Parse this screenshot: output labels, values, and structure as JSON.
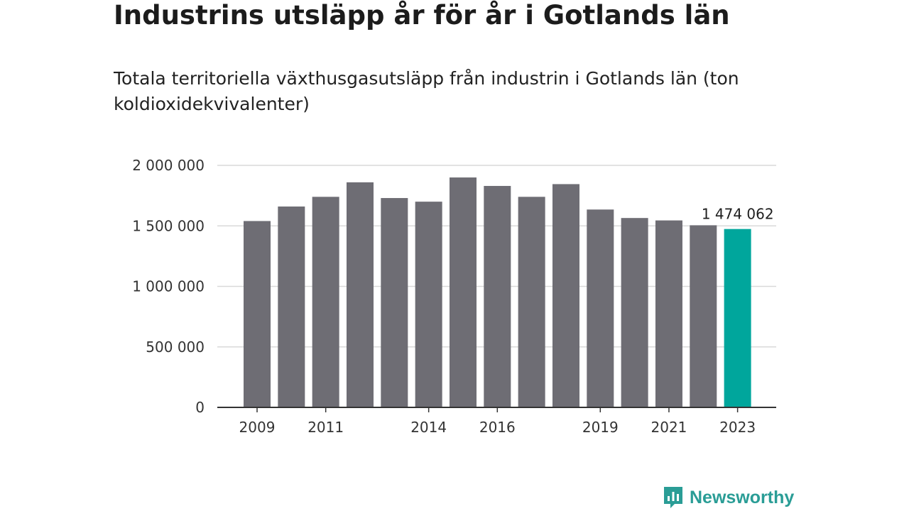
{
  "title": "Industrins utsläpp år för år i Gotlands län",
  "subtitle": "Totala territoriella växthusgasutsläpp från industrin i Gotlands län (ton koldioxidekvivalenter)",
  "brand": {
    "name": "Newsworthy",
    "color": "#2a9d96"
  },
  "colors": {
    "bar": "#6e6d74",
    "highlight": "#00a69c",
    "grid": "#d9d9d9",
    "axis": "#333333"
  },
  "chart_data": {
    "type": "bar",
    "categories": [
      "2009",
      "2010",
      "2011",
      "2012",
      "2013",
      "2014",
      "2015",
      "2016",
      "2017",
      "2018",
      "2019",
      "2020",
      "2021",
      "2022",
      "2023"
    ],
    "values": [
      1540000,
      1660000,
      1740000,
      1860000,
      1730000,
      1700000,
      1900000,
      1830000,
      1740000,
      1845000,
      1635000,
      1565000,
      1545000,
      1505000,
      1474062
    ],
    "highlight_index": 14,
    "highlight_label": "1 474 062",
    "xtick_labels": [
      "2009",
      "",
      "2011",
      "",
      "",
      "2014",
      "",
      "2016",
      "",
      "",
      "2019",
      "",
      "2021",
      "",
      "2023"
    ],
    "yticks": [
      0,
      500000,
      1000000,
      1500000,
      2000000
    ],
    "ytick_labels": [
      "0",
      "500 000",
      "1 000 000",
      "1 500 000",
      "2 000 000"
    ],
    "ylim": [
      0,
      2000000
    ],
    "grid": true,
    "legend": "none",
    "xlabel": "",
    "ylabel": ""
  }
}
